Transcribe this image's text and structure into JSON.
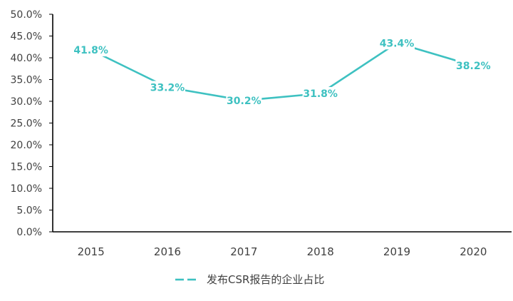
{
  "chart_data": {
    "type": "line",
    "categories": [
      "2015",
      "2016",
      "2017",
      "2018",
      "2019",
      "2020"
    ],
    "series": [
      {
        "name": "发布CSR报告的企业占比",
        "values": [
          41.8,
          33.2,
          30.2,
          31.8,
          43.4,
          38.2
        ],
        "labels": [
          "41.8%",
          "33.2%",
          "30.2%",
          "31.8%",
          "43.4%",
          "38.2%"
        ],
        "color": "#3EC1C1"
      }
    ],
    "yticks": [
      "0.0%",
      "5.0%",
      "10.0%",
      "15.0%",
      "20.0%",
      "25.0%",
      "30.0%",
      "35.0%",
      "40.0%",
      "45.0%",
      "50.0%"
    ],
    "ylim": [
      0,
      50
    ],
    "grid": false,
    "legend": "bottom",
    "axis_color": "#000000",
    "text_color": "#404040"
  }
}
